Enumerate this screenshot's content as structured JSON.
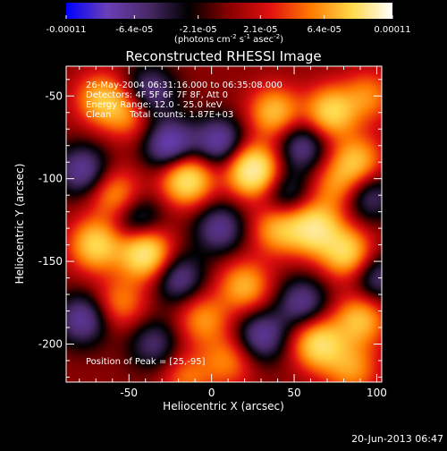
{
  "colorbar": {
    "tick_labels": [
      "-0.00011",
      "-6.4e-05",
      "-2.1e-05",
      "2.1e-05",
      "6.4e-05",
      "0.00011"
    ],
    "unit_label": "(photons cm",
    "unit_sup1": "-2",
    "unit_mid": " s",
    "unit_sup2": "-1",
    "unit_end": " asec",
    "unit_sup3": "-2",
    "unit_close": ")"
  },
  "chart_data": {
    "type": "heatmap",
    "title": "Reconstructed RHESSI Image",
    "xlabel": "Heliocentric X (arcsec)",
    "ylabel": "Heliocentric Y (arcsec)",
    "xlim": [
      -88,
      103
    ],
    "ylim": [
      -223,
      -32
    ],
    "xticks": [
      -50,
      0,
      50,
      100
    ],
    "yticks": [
      -50,
      -100,
      -150,
      -200
    ],
    "value_range": [
      -0.00011,
      0.00011
    ],
    "peak_position": [
      25,
      -95
    ],
    "colormap": [
      "#0000ff",
      "#6a3fb8",
      "#4a2a6a",
      "#000000",
      "#8a0000",
      "#e01010",
      "#ff7a00",
      "#ffd84a",
      "#ffffff"
    ],
    "blobs": [
      {
        "x": -67,
        "y": -52,
        "v": 0.55
      },
      {
        "x": -50,
        "y": -60,
        "v": 0.45
      },
      {
        "x": -38,
        "y": -48,
        "v": -0.55
      },
      {
        "x": -25,
        "y": -80,
        "v": -0.7
      },
      {
        "x": -15,
        "y": -100,
        "v": 0.85
      },
      {
        "x": 5,
        "y": -78,
        "v": -0.6
      },
      {
        "x": 25,
        "y": -95,
        "v": 1.0
      },
      {
        "x": 38,
        "y": -60,
        "v": 0.6
      },
      {
        "x": 55,
        "y": -80,
        "v": -0.5
      },
      {
        "x": 72,
        "y": -60,
        "v": 0.7
      },
      {
        "x": 88,
        "y": -90,
        "v": 0.6
      },
      {
        "x": 95,
        "y": -50,
        "v": 0.4
      },
      {
        "x": -78,
        "y": -95,
        "v": -0.55
      },
      {
        "x": -58,
        "y": -110,
        "v": 0.5
      },
      {
        "x": -70,
        "y": -140,
        "v": 0.7
      },
      {
        "x": -40,
        "y": -145,
        "v": 0.9
      },
      {
        "x": -45,
        "y": -125,
        "v": -0.45
      },
      {
        "x": -20,
        "y": -160,
        "v": -0.5
      },
      {
        "x": 5,
        "y": -130,
        "v": -0.5
      },
      {
        "x": 20,
        "y": -165,
        "v": 0.55
      },
      {
        "x": 40,
        "y": -130,
        "v": 0.55
      },
      {
        "x": 45,
        "y": -110,
        "v": -0.4
      },
      {
        "x": 62,
        "y": -130,
        "v": 0.8
      },
      {
        "x": 82,
        "y": -145,
        "v": 0.7
      },
      {
        "x": 95,
        "y": -110,
        "v": -0.45
      },
      {
        "x": 75,
        "y": -105,
        "v": 0.4
      },
      {
        "x": -78,
        "y": -185,
        "v": -0.55
      },
      {
        "x": -55,
        "y": -175,
        "v": 0.4
      },
      {
        "x": -35,
        "y": -200,
        "v": -0.4
      },
      {
        "x": -5,
        "y": -185,
        "v": 0.45
      },
      {
        "x": 10,
        "y": -210,
        "v": 0.4
      },
      {
        "x": 30,
        "y": -195,
        "v": -0.55
      },
      {
        "x": 55,
        "y": -175,
        "v": -0.5
      },
      {
        "x": 65,
        "y": -200,
        "v": 0.75
      },
      {
        "x": 90,
        "y": -185,
        "v": 0.6
      },
      {
        "x": 100,
        "y": -160,
        "v": -0.45
      },
      {
        "x": -15,
        "y": -220,
        "v": 0.35
      },
      {
        "x": 85,
        "y": -215,
        "v": 0.45
      }
    ]
  },
  "annotations": {
    "time_range": "26-May-2004 06:31:16.000 to 06:35:08.000",
    "detectors": "Detectors: 4F 5F 6F 7F 8F, Att 0",
    "energy_range": "Energy Range: 12.0 - 25.0 keV",
    "clean": "Clean",
    "total_counts": "Total counts: 1.87E+03",
    "peak": "Position of Peak = [25,-95]"
  },
  "footer": {
    "timestamp": "20-Jun-2013 06:47"
  }
}
